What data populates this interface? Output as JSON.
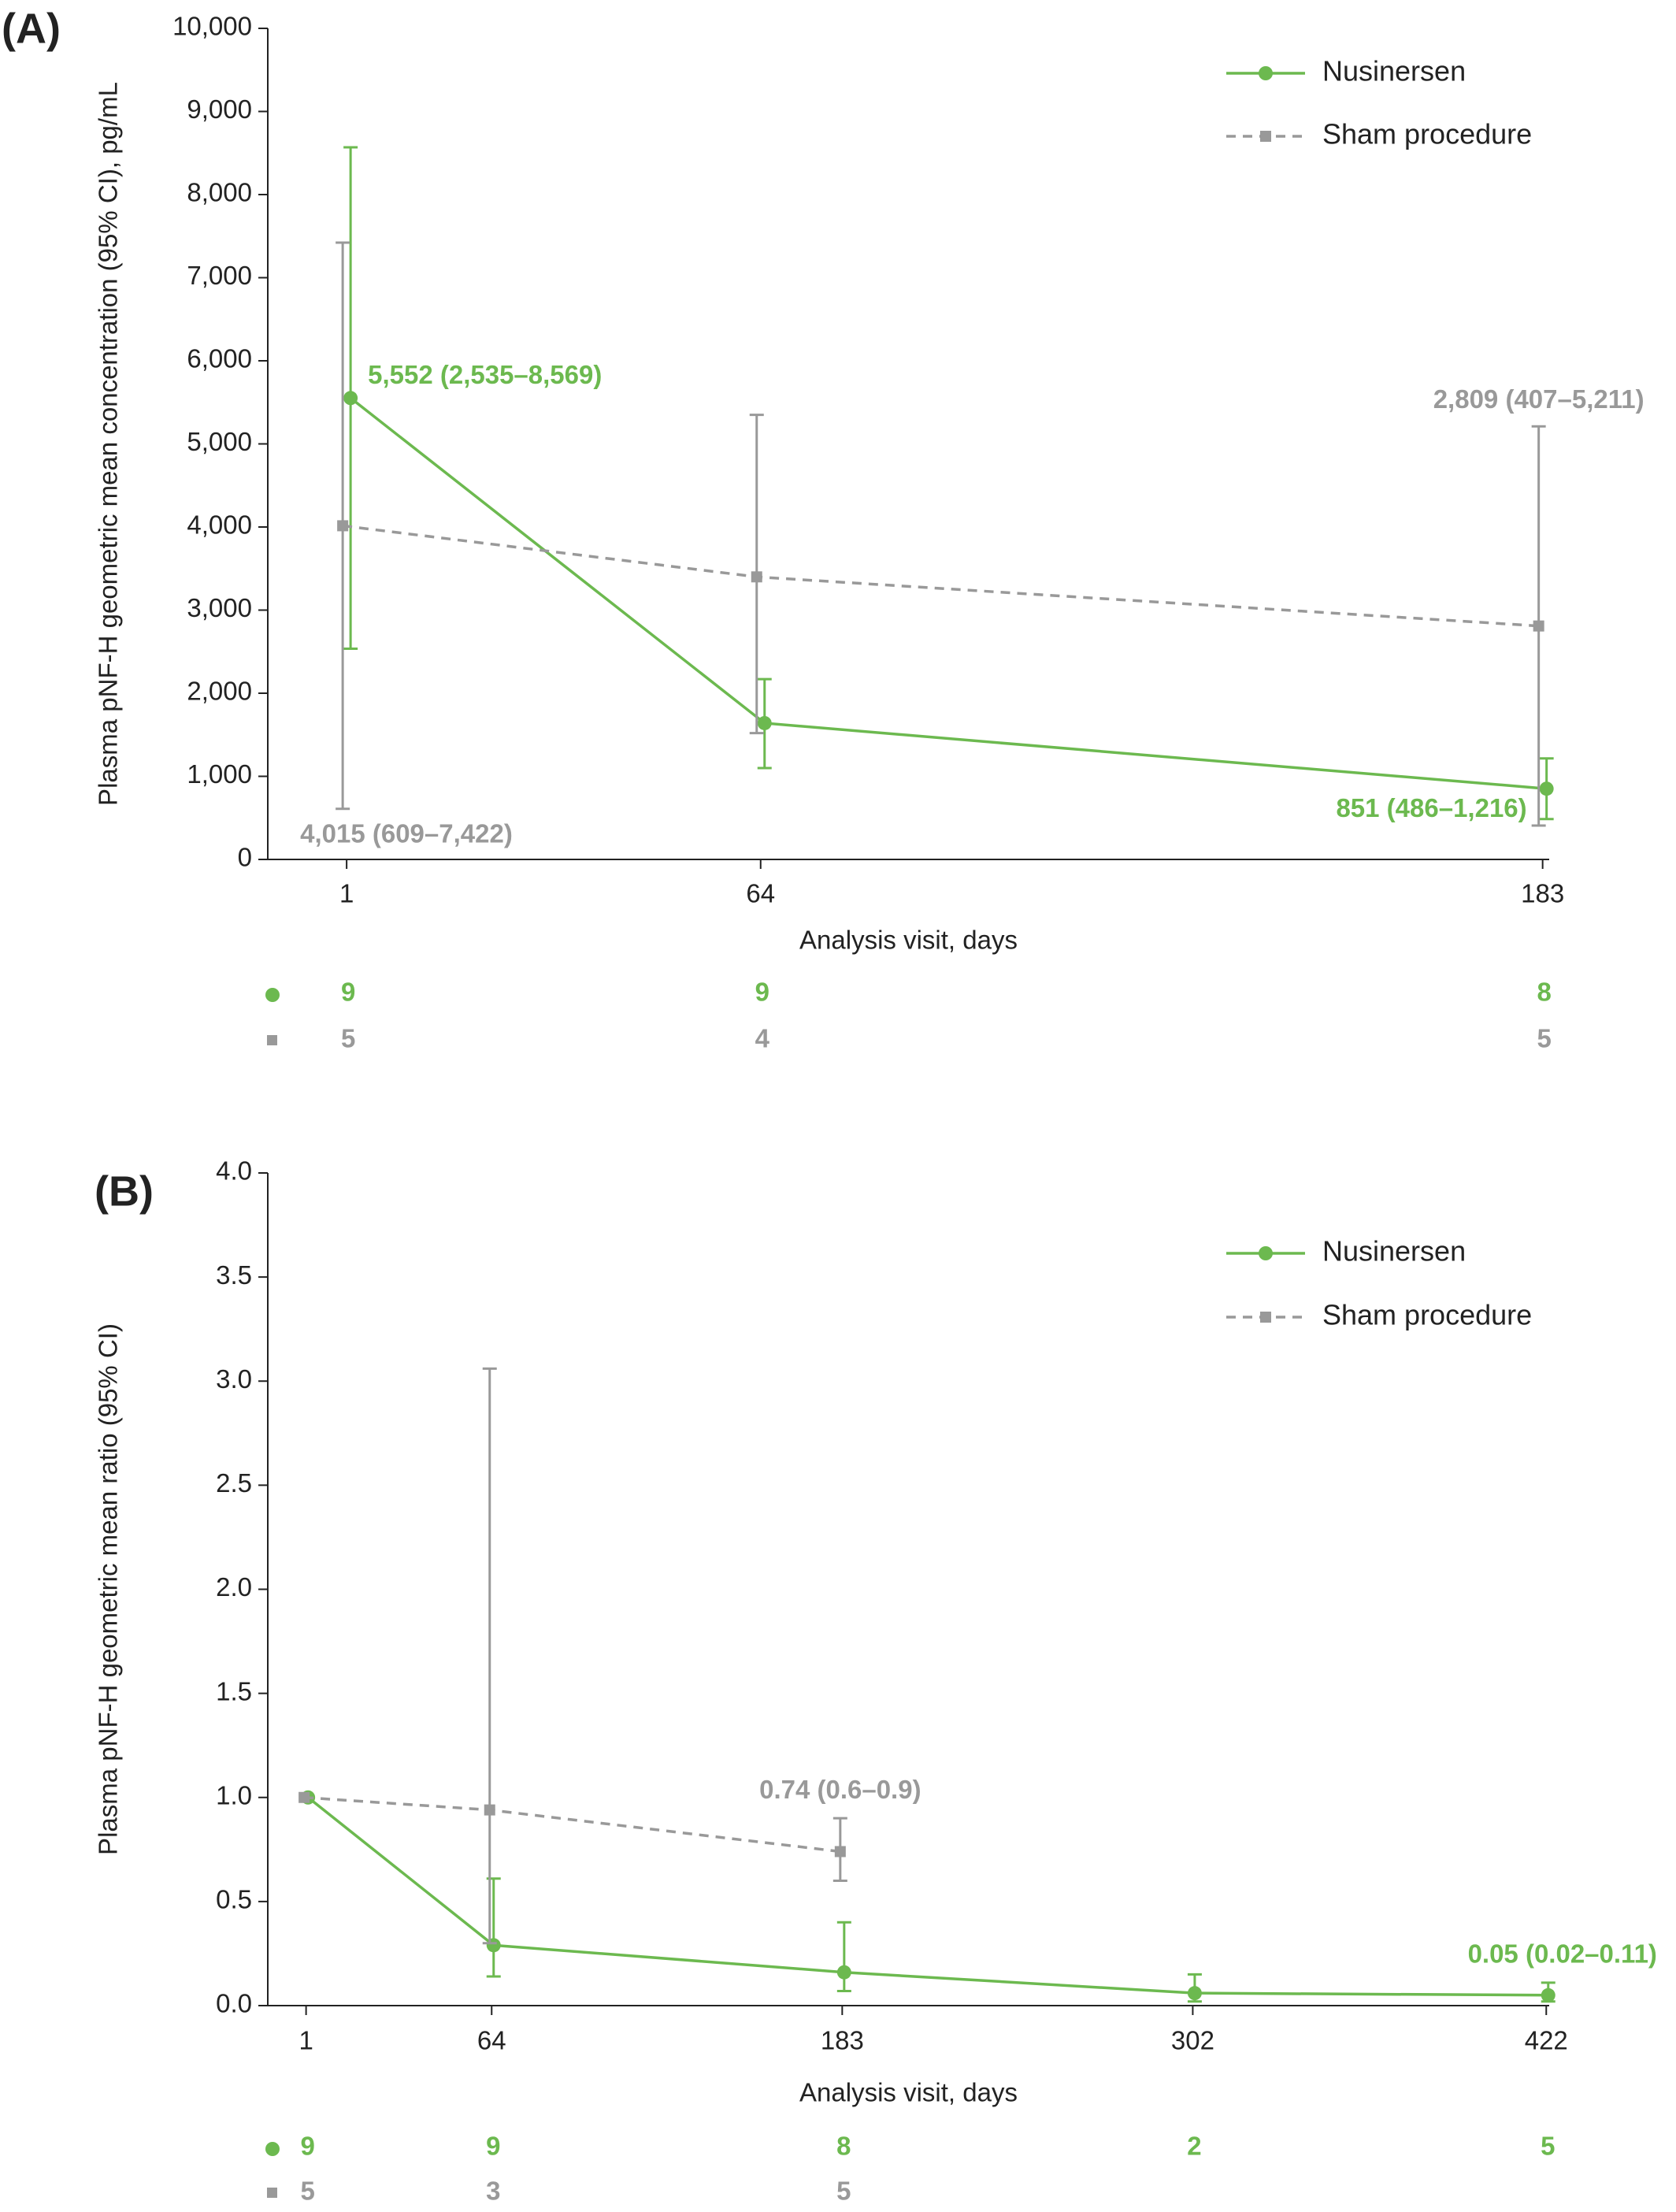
{
  "charts": [
    {
      "chart_data": {
        "type": "line",
        "title": "(A)",
        "y_label": "Plasma pNF-H geometric mean concentration (95% CI), pg/mL",
        "x_label": "Analysis visit, days",
        "x": [
          1,
          64,
          183
        ],
        "xlim": [
          -11,
          184
        ],
        "xticks": [
          1,
          64,
          183
        ],
        "ylim": [
          0,
          10000
        ],
        "yticks": [
          0,
          {
            "value": 1000,
            "label": "1,000"
          },
          {
            "value": 2000,
            "label": "2,000"
          },
          {
            "value": 3000,
            "label": "3,000"
          },
          {
            "value": 4000,
            "label": "4,000"
          },
          {
            "value": 5000,
            "label": "5,000"
          },
          {
            "value": 6000,
            "label": "6,000"
          },
          {
            "value": 7000,
            "label": "7,000"
          },
          {
            "value": 8000,
            "label": "8,000"
          },
          {
            "value": 9000,
            "label": "9,000"
          },
          {
            "value": 10000,
            "label": "10,000"
          }
        ],
        "legend": "upper right",
        "series": [
          {
            "name": "Nusinersen",
            "color": "#6cb94f",
            "marker": "circle",
            "dashed": false,
            "values": [
              5552,
              1640,
              851
            ],
            "ci_lower": [
              2535,
              1100,
              486
            ],
            "ci_upper": [
              8569,
              2170,
              1216
            ],
            "value_labels": [
              "5,552 (2,535–8,569)",
              null,
              "851 (486–1,216)"
            ],
            "n": [
              9,
              9,
              8
            ]
          },
          {
            "name": "Sham procedure",
            "color": "#999999",
            "marker": "square",
            "dashed": true,
            "values": [
              4015,
              3400,
              2809
            ],
            "ci_lower": [
              609,
              1520,
              407
            ],
            "ci_upper": [
              7422,
              5350,
              5211
            ],
            "value_labels": [
              "4,015 (609–7,422)",
              null,
              "2,809 (407–5,211)"
            ],
            "n": [
              5,
              4,
              5
            ]
          }
        ]
      }
    },
    {
      "chart_data": {
        "type": "line",
        "title": "(B)",
        "y_label": "Plasma pNF-H geometric mean ratio (95% CI)",
        "x_label": "Analysis visit, days",
        "x": [
          1,
          64,
          183,
          302,
          422
        ],
        "xlim": [
          -12,
          423
        ],
        "xticks": [
          1,
          64,
          183,
          302,
          422
        ],
        "ylim": [
          0,
          4
        ],
        "yticks": [
          {
            "value": 0,
            "label": "0.0"
          },
          0.5,
          {
            "value": 1,
            "label": "1.0"
          },
          1.5,
          {
            "value": 2,
            "label": "2.0"
          },
          2.5,
          {
            "value": 3,
            "label": "3.0"
          },
          3.5,
          {
            "value": 4,
            "label": "4.0"
          }
        ],
        "legend": "upper right",
        "series": [
          {
            "name": "Nusinersen",
            "color": "#6cb94f",
            "marker": "circle",
            "dashed": false,
            "values": [
              1.0,
              0.29,
              0.16,
              0.06,
              0.05
            ],
            "ci_lower": [
              null,
              0.14,
              0.07,
              0.02,
              0.02
            ],
            "ci_upper": [
              null,
              0.61,
              0.4,
              0.15,
              0.11
            ],
            "value_labels": [
              null,
              null,
              null,
              null,
              "0.05 (0.02–0.11)"
            ],
            "n": [
              9,
              9,
              8,
              2,
              5
            ]
          },
          {
            "name": "Sham procedure",
            "color": "#999999",
            "marker": "square",
            "dashed": true,
            "values": [
              1.0,
              0.94,
              0.74,
              null,
              null
            ],
            "ci_lower": [
              null,
              0.3,
              0.6,
              null,
              null
            ],
            "ci_upper": [
              null,
              3.06,
              0.9,
              null,
              null
            ],
            "value_labels": [
              null,
              null,
              "0.74 (0.6–0.9)",
              null,
              null
            ],
            "n": [
              5,
              3,
              5,
              null,
              null
            ]
          }
        ]
      }
    }
  ]
}
